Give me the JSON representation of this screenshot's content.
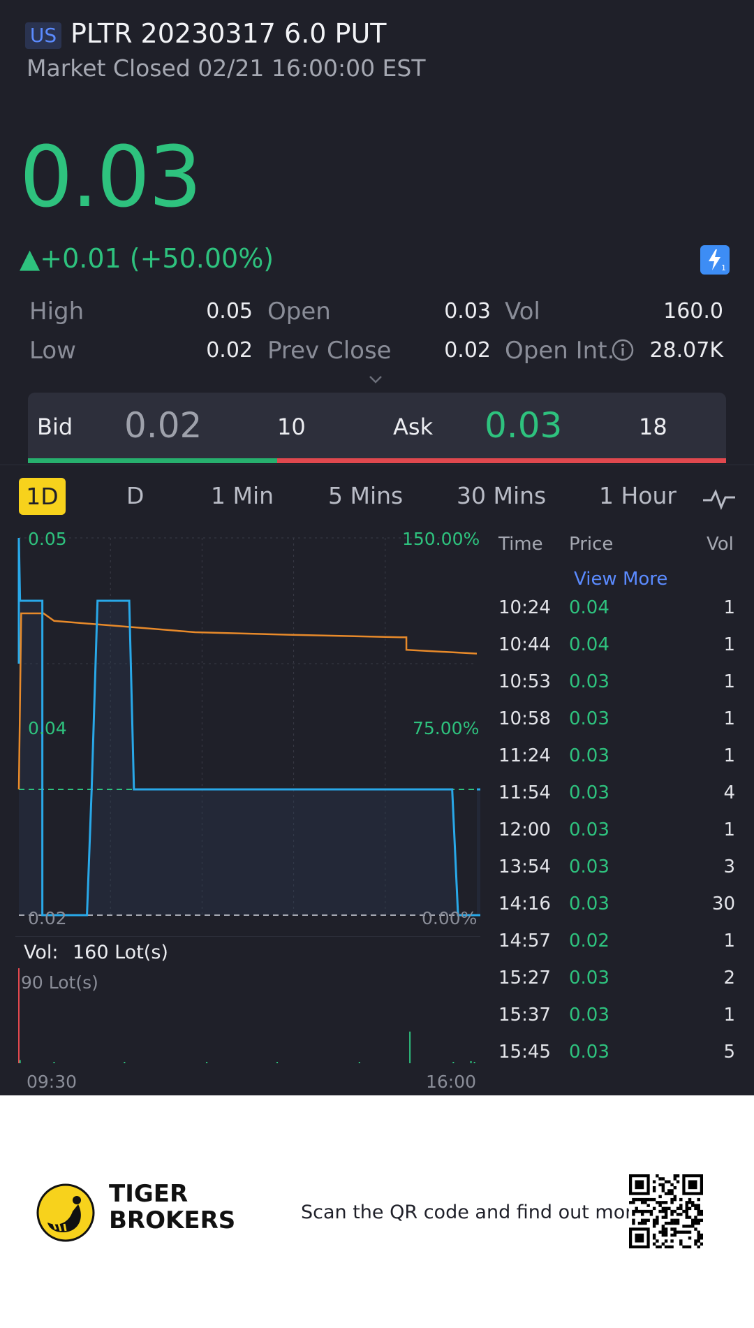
{
  "header": {
    "region": "US",
    "title": "PLTR 20230317 6.0 PUT",
    "status": "Market Closed 02/21 16:00:00 EST"
  },
  "quote": {
    "price": "0.03",
    "change": "▲+0.01 (+50.00%)",
    "stats": [
      {
        "label": "High",
        "value": "0.05"
      },
      {
        "label": "Low",
        "value": "0.02"
      },
      {
        "label": "Open",
        "value": "0.03"
      },
      {
        "label": "Prev Close",
        "value": "0.02"
      },
      {
        "label": "Vol",
        "value": "160.0"
      },
      {
        "label": "Open Int.",
        "value": "28.07K"
      }
    ]
  },
  "orderbook": {
    "bid_label": "Bid",
    "bid_price": "0.02",
    "bid_size": "10",
    "ask_label": "Ask",
    "ask_price": "0.03",
    "ask_size": "18",
    "bid_fraction": 0.357
  },
  "tabs": [
    "1D",
    "D",
    "1 Min",
    "5 Mins",
    "30 Mins",
    "1 Hour"
  ],
  "active_tab": "1D",
  "chart_labels": {
    "y_top": "0.05",
    "y_mid": "0.04",
    "y_bot": "0.02",
    "pct_top": "150.00%",
    "pct_mid": "75.00%",
    "pct_bot": "0.00%",
    "vol_summary_label": "Vol:",
    "vol_summary_value": "160 Lot(s)",
    "vol_axis_max": "90 Lot(s)",
    "x_start": "09:30",
    "x_end": "16:00"
  },
  "chart_data": {
    "type": "line",
    "ylim": [
      0.02,
      0.05
    ],
    "xlim": [
      "09:30",
      "16:00"
    ],
    "series": [
      {
        "color": "#29a8e8",
        "values": [
          [
            570,
            0.04
          ],
          [
            570,
            0.05
          ],
          [
            571,
            0.045
          ],
          [
            590,
            0.045
          ],
          [
            590,
            0.02
          ],
          [
            628,
            0.02
          ],
          [
            632,
            0.03
          ],
          [
            637,
            0.045
          ],
          [
            664,
            0.045
          ],
          [
            668,
            0.03
          ],
          [
            939,
            0.03
          ],
          [
            944,
            0.02
          ],
          [
            976,
            0.02
          ],
          [
            981,
            0.03
          ],
          [
            960,
            0.03
          ]
        ]
      },
      {
        "color": "#e88a2a",
        "values": [
          [
            570,
            0.03
          ],
          [
            572,
            0.044
          ],
          [
            591,
            0.044
          ],
          [
            600,
            0.0434
          ],
          [
            720,
            0.0425
          ],
          [
            800,
            0.0423
          ],
          [
            895,
            0.0421
          ],
          [
            900,
            0.0411
          ],
          [
            960,
            0.0408
          ]
        ]
      }
    ],
    "baseline": 0.03,
    "prev_close": 0.02,
    "volume": {
      "max": 90,
      "bars": [
        [
          570,
          90
        ],
        [
          571,
          3
        ],
        [
          600,
          1
        ],
        [
          660,
          1
        ],
        [
          730,
          1
        ],
        [
          790,
          1
        ],
        [
          860,
          1
        ],
        [
          903,
          30
        ],
        [
          940,
          1
        ],
        [
          955,
          2
        ],
        [
          958,
          1
        ]
      ]
    }
  },
  "trades": {
    "headers": {
      "time": "Time",
      "price": "Price",
      "vol": "Vol"
    },
    "view_more": "View More",
    "rows": [
      {
        "time": "10:24",
        "price": "0.04",
        "vol": "1"
      },
      {
        "time": "10:44",
        "price": "0.04",
        "vol": "1"
      },
      {
        "time": "10:53",
        "price": "0.03",
        "vol": "1"
      },
      {
        "time": "10:58",
        "price": "0.03",
        "vol": "1"
      },
      {
        "time": "11:24",
        "price": "0.03",
        "vol": "1"
      },
      {
        "time": "11:54",
        "price": "0.03",
        "vol": "4"
      },
      {
        "time": "12:00",
        "price": "0.03",
        "vol": "1"
      },
      {
        "time": "13:54",
        "price": "0.03",
        "vol": "3"
      },
      {
        "time": "14:16",
        "price": "0.03",
        "vol": "30"
      },
      {
        "time": "14:57",
        "price": "0.02",
        "vol": "1"
      },
      {
        "time": "15:27",
        "price": "0.03",
        "vol": "2"
      },
      {
        "time": "15:37",
        "price": "0.03",
        "vol": "1"
      },
      {
        "time": "15:45",
        "price": "0.03",
        "vol": "5"
      }
    ]
  },
  "footer": {
    "brand_line1": "TIGER",
    "brand_line2": "BROKERS",
    "cta": "Scan the QR code and find out more"
  },
  "colors": {
    "up": "#2ec27e",
    "down": "#e0484e",
    "accent": "#f7d21c",
    "link": "#5b8bff"
  }
}
